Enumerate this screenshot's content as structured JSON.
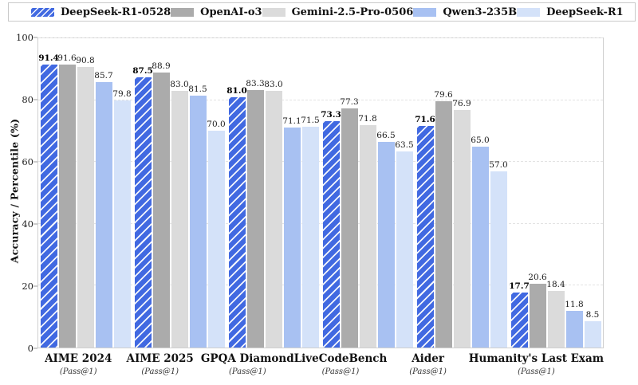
{
  "chart_data": {
    "type": "bar",
    "title": "",
    "ylabel": "Accuracy / Percentile (%)",
    "xlabel": "",
    "ylim": [
      0,
      100
    ],
    "yticks": [
      0,
      20,
      40,
      60,
      80,
      100
    ],
    "grid": "horizontal-dashed",
    "legend_position": "top",
    "categories": [
      "AIME 2024",
      "AIME 2025",
      "GPQA Diamond",
      "LiveCodeBench",
      "Aider",
      "Humanity's Last Exam"
    ],
    "category_sublabels": [
      "(Pass@1)",
      "(Pass@1)",
      "(Pass@1)",
      "(Pass@1)",
      "(Pass@1)",
      "(Pass@1)"
    ],
    "series": [
      {
        "name": "DeepSeek-R1-0528",
        "color": "#4169E1",
        "hatch": true,
        "emphasis": true,
        "values": [
          91.4,
          87.5,
          81.0,
          73.3,
          71.6,
          17.7
        ]
      },
      {
        "name": "OpenAI-o3",
        "color": "#ABABAB",
        "hatch": false,
        "emphasis": false,
        "values": [
          91.6,
          88.9,
          83.3,
          77.3,
          79.6,
          20.6
        ]
      },
      {
        "name": "Gemini-2.5-Pro-0506",
        "color": "#DBDBDB",
        "hatch": false,
        "emphasis": false,
        "values": [
          90.8,
          83.0,
          83.0,
          71.8,
          76.9,
          18.4
        ]
      },
      {
        "name": "Qwen3-235B",
        "color": "#A8C1F2",
        "hatch": false,
        "emphasis": false,
        "values": [
          85.7,
          81.5,
          71.1,
          66.5,
          65.0,
          11.8
        ]
      },
      {
        "name": "DeepSeek-R1",
        "color": "#D4E2F9",
        "hatch": false,
        "emphasis": false,
        "values": [
          79.8,
          70.0,
          71.5,
          63.5,
          57.0,
          8.5
        ]
      }
    ],
    "colors": {
      "grid": "#e3e3e3",
      "plot_border": "#cfcfcf",
      "text": "#111111"
    }
  }
}
